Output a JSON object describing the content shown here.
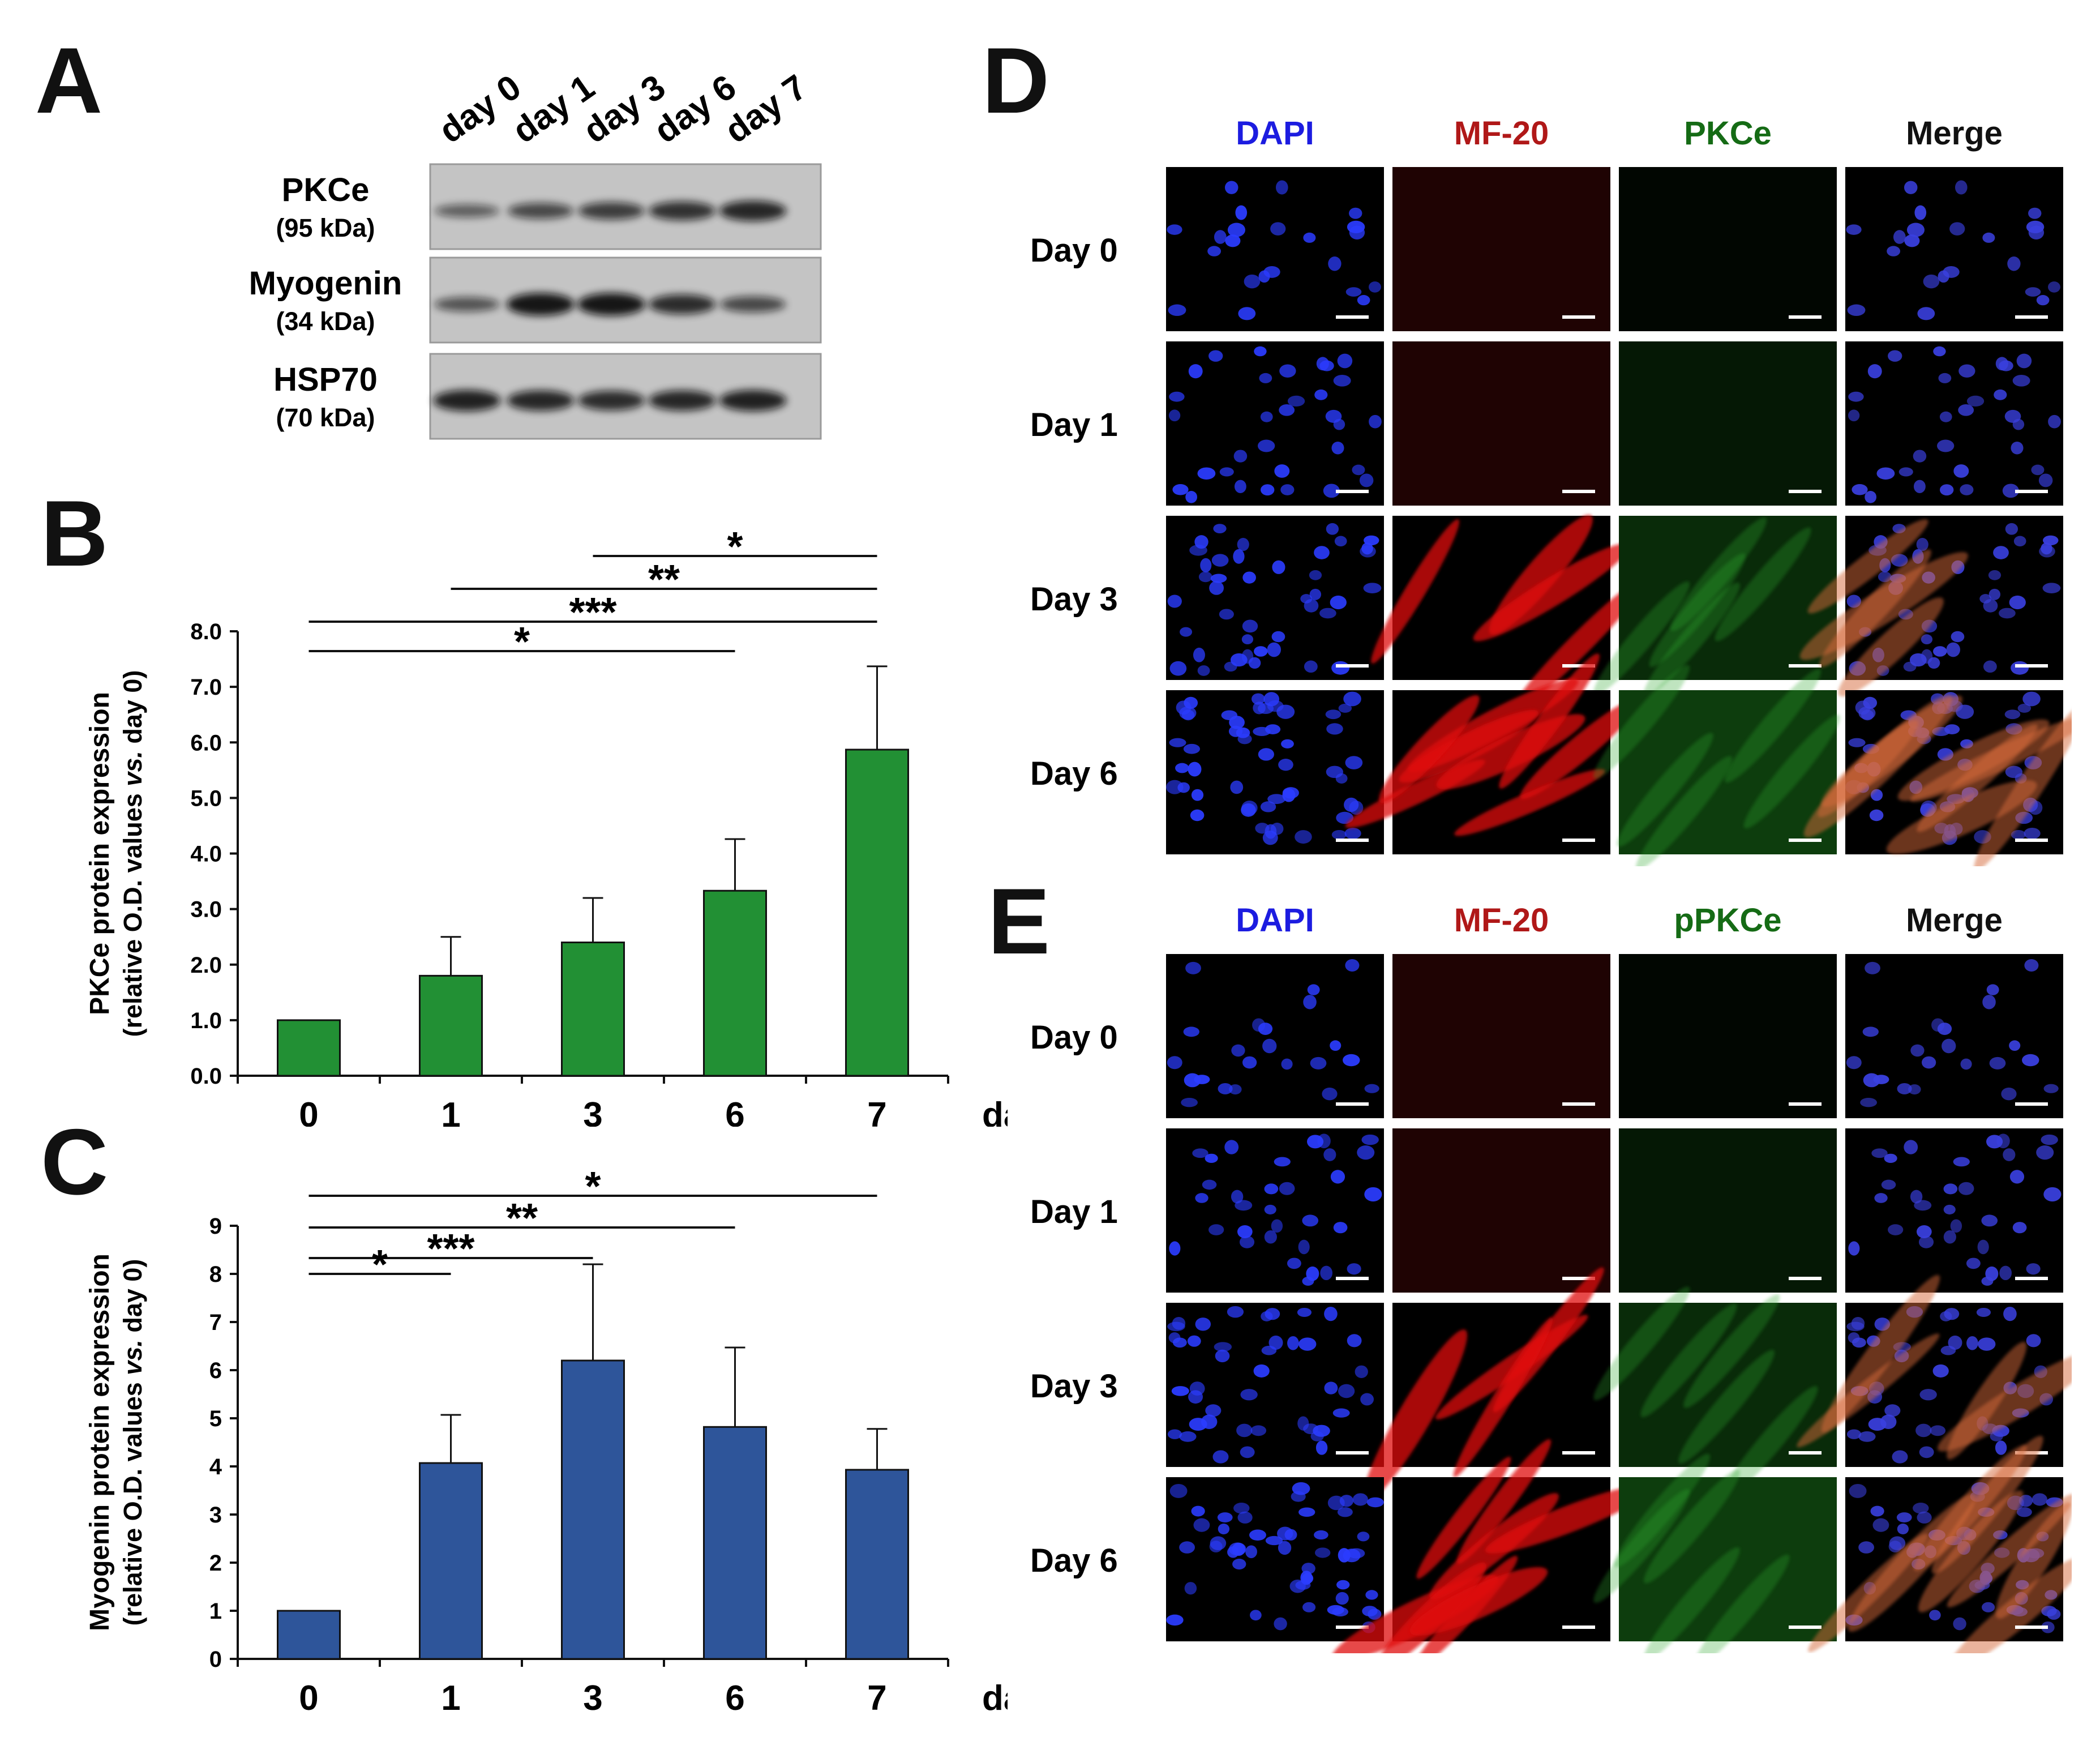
{
  "panels": {
    "a": "A",
    "b": "B",
    "c": "C",
    "d": "D",
    "e": "E"
  },
  "blot": {
    "lanes": [
      "day 0",
      "day 1",
      "day 3",
      "day 6",
      "day 7"
    ],
    "rows": [
      {
        "name": "PKCe",
        "weight": "(95 kDa)",
        "intensity": [
          0.35,
          0.55,
          0.65,
          0.75,
          0.85
        ]
      },
      {
        "name": "Myogenin",
        "weight": "(34 kDa)",
        "intensity": [
          0.45,
          1.0,
          1.0,
          0.8,
          0.55
        ]
      },
      {
        "name": "HSP70",
        "weight": "(70 kDa)",
        "intensity": [
          0.9,
          0.85,
          0.8,
          0.85,
          0.9
        ]
      }
    ]
  },
  "chart_data": [
    {
      "type": "bar",
      "categories": [
        "0",
        "1",
        "3",
        "6",
        "7"
      ],
      "values": [
        1.0,
        1.8,
        2.4,
        3.33,
        5.87
      ],
      "errors": [
        0,
        0.7,
        0.8,
        0.93,
        1.5
      ],
      "ylabel_line1": "PKCe protein expression",
      "ylabel_line2_pre": "(relative O.D. values ",
      "ylabel_line2_ital": "vs.",
      "ylabel_line2_post": " day 0)",
      "xunit": "days",
      "ylim": [
        0,
        8
      ],
      "yticks": [
        "0.0",
        "1.0",
        "2.0",
        "3.0",
        "4.0",
        "5.0",
        "6.0",
        "7.0",
        "8.0"
      ],
      "bar_color": "#229034",
      "significance": [
        {
          "from": "3",
          "to": "7",
          "label": "*"
        },
        {
          "from": "1",
          "to": "7",
          "label": "**"
        },
        {
          "from": "0",
          "to": "7",
          "label": "***"
        },
        {
          "from": "0",
          "to": "6",
          "label": "*"
        }
      ]
    },
    {
      "type": "bar",
      "categories": [
        "0",
        "1",
        "3",
        "6",
        "7"
      ],
      "values": [
        1.0,
        4.07,
        6.2,
        4.82,
        3.93
      ],
      "errors": [
        0,
        1.0,
        2.0,
        1.65,
        0.85
      ],
      "ylabel_line1": "Myogenin protein expression",
      "ylabel_line2_pre": "(relative O.D. values ",
      "ylabel_line2_ital": "vs.",
      "ylabel_line2_post": " day 0)",
      "xunit": "days",
      "ylim": [
        0,
        9
      ],
      "yticks": [
        "0",
        "1",
        "2",
        "3",
        "4",
        "5",
        "6",
        "7",
        "8",
        "9"
      ],
      "bar_color": "#2e559a",
      "significance": [
        {
          "from": "0",
          "to": "7",
          "label": "*"
        },
        {
          "from": "0",
          "to": "6",
          "label": "**"
        },
        {
          "from": "0",
          "to": "3",
          "label": "***"
        },
        {
          "from": "0",
          "to": "1",
          "label": "*"
        }
      ]
    }
  ],
  "micro_d": {
    "columns": [
      {
        "label": "DAPI",
        "color": "#1c1ce0"
      },
      {
        "label": "MF-20",
        "color": "#b01818"
      },
      {
        "label": "PKCe",
        "color": "#156b15"
      },
      {
        "label": "Merge",
        "color": "#111111"
      }
    ],
    "rows": [
      "Day 0",
      "Day 1",
      "Day 3",
      "Day 6"
    ]
  },
  "micro_e": {
    "columns": [
      {
        "label": "DAPI",
        "color": "#1c1ce0"
      },
      {
        "label": "MF-20",
        "color": "#b01818"
      },
      {
        "label": "pPKCe",
        "color": "#156b15"
      },
      {
        "label": "Merge",
        "color": "#111111"
      }
    ],
    "rows": [
      "Day 0",
      "Day 1",
      "Day 3",
      "Day 6"
    ]
  }
}
